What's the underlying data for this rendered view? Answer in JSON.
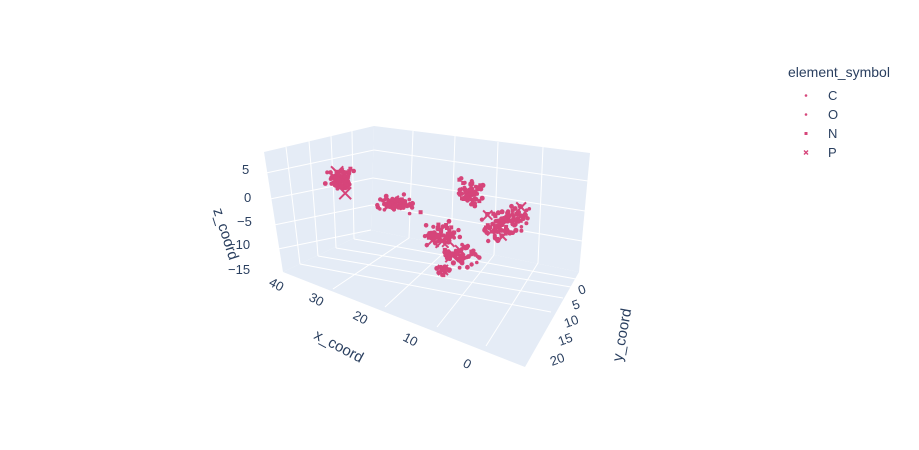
{
  "chart_data": {
    "type": "scatter3d",
    "legend_title": "element_symbol",
    "legend_position": "top-right",
    "marker_color": "#d6457a",
    "series": [
      {
        "name": "C",
        "symbol": "circle"
      },
      {
        "name": "O",
        "symbol": "circle"
      },
      {
        "name": "N",
        "symbol": "square"
      },
      {
        "name": "P",
        "symbol": "x"
      }
    ],
    "axes": {
      "x": {
        "title": "x_coord",
        "ticks": [
          "40",
          "30",
          "20",
          "10",
          "0"
        ]
      },
      "y": {
        "title": "y_coord",
        "ticks": [
          "0",
          "5",
          "10",
          "15",
          "20"
        ]
      },
      "z": {
        "title": "z_coord",
        "ticks": [
          "5",
          "0",
          "−5",
          "−10",
          "−15"
        ]
      }
    }
  }
}
